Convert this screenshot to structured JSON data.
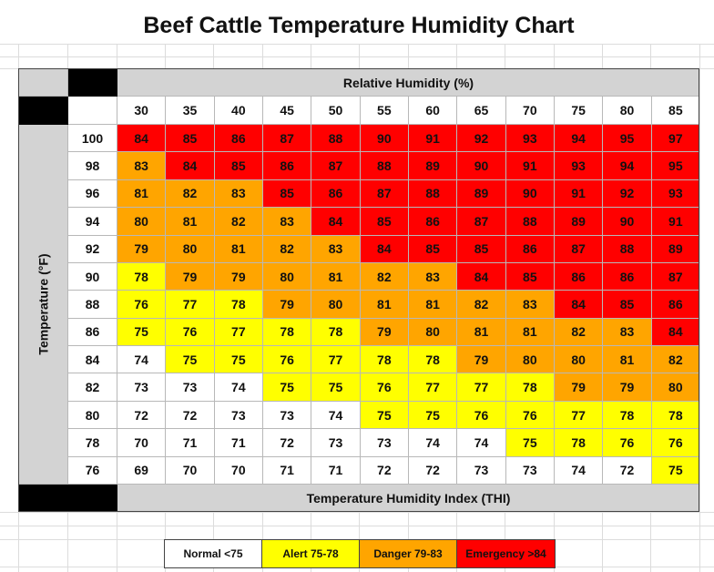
{
  "title": "Beef Cattle Temperature Humidity Chart",
  "colors": {
    "normal": "#ffffff",
    "alert": "#ffff00",
    "danger": "#ffa500",
    "emergency": "#ff0000",
    "header_bg": "#d3d3d3",
    "black": "#000000"
  },
  "chart_data": {
    "type": "heatmap",
    "title": "Beef Cattle Temperature Humidity Chart",
    "xlabel": "Relative Humidity (%)",
    "ylabel": "Temperature (°F)",
    "value_label": "Temperature Humidity Index (THI)",
    "x": [
      "30",
      "35",
      "40",
      "45",
      "50",
      "55",
      "60",
      "65",
      "70",
      "75",
      "80",
      "85"
    ],
    "y": [
      "100",
      "98",
      "96",
      "94",
      "92",
      "90",
      "88",
      "86",
      "84",
      "82",
      "80",
      "78",
      "76"
    ],
    "z": [
      [
        84,
        85,
        86,
        87,
        88,
        90,
        91,
        92,
        93,
        94,
        95,
        97
      ],
      [
        83,
        84,
        85,
        86,
        87,
        88,
        89,
        90,
        91,
        93,
        94,
        95
      ],
      [
        81,
        82,
        83,
        85,
        86,
        87,
        88,
        89,
        90,
        91,
        92,
        93
      ],
      [
        80,
        81,
        82,
        83,
        84,
        85,
        86,
        87,
        88,
        89,
        90,
        91
      ],
      [
        79,
        80,
        81,
        82,
        83,
        84,
        85,
        85,
        86,
        87,
        88,
        89
      ],
      [
        78,
        79,
        79,
        80,
        81,
        82,
        83,
        84,
        85,
        86,
        86,
        87
      ],
      [
        76,
        77,
        78,
        79,
        80,
        81,
        81,
        82,
        83,
        84,
        85,
        86
      ],
      [
        75,
        76,
        77,
        78,
        78,
        79,
        80,
        81,
        81,
        82,
        83,
        84
      ],
      [
        74,
        75,
        75,
        76,
        77,
        78,
        78,
        79,
        80,
        80,
        81,
        82
      ],
      [
        73,
        73,
        74,
        75,
        75,
        76,
        77,
        77,
        78,
        79,
        79,
        80
      ],
      [
        72,
        72,
        73,
        73,
        74,
        75,
        75,
        76,
        76,
        77,
        78,
        78
      ],
      [
        70,
        71,
        71,
        72,
        73,
        73,
        74,
        74,
        75,
        78,
        76,
        76
      ],
      [
        69,
        70,
        70,
        71,
        71,
        72,
        72,
        73,
        73,
        74,
        72,
        75
      ]
    ],
    "categories_color": [
      "NNNNNNNNNNNNN"
    ],
    "color_category": [
      [
        "E",
        "E",
        "E",
        "E",
        "E",
        "E",
        "E",
        "E",
        "E",
        "E",
        "E",
        "E"
      ],
      [
        "D",
        "E",
        "E",
        "E",
        "E",
        "E",
        "E",
        "E",
        "E",
        "E",
        "E",
        "E"
      ],
      [
        "D",
        "D",
        "D",
        "E",
        "E",
        "E",
        "E",
        "E",
        "E",
        "E",
        "E",
        "E"
      ],
      [
        "D",
        "D",
        "D",
        "D",
        "E",
        "E",
        "E",
        "E",
        "E",
        "E",
        "E",
        "E"
      ],
      [
        "D",
        "D",
        "D",
        "D",
        "D",
        "E",
        "E",
        "E",
        "E",
        "E",
        "E",
        "E"
      ],
      [
        "A",
        "D",
        "D",
        "D",
        "D",
        "D",
        "D",
        "E",
        "E",
        "E",
        "E",
        "E"
      ],
      [
        "A",
        "A",
        "A",
        "D",
        "D",
        "D",
        "D",
        "D",
        "D",
        "E",
        "E",
        "E"
      ],
      [
        "A",
        "A",
        "A",
        "A",
        "A",
        "D",
        "D",
        "D",
        "D",
        "D",
        "D",
        "E"
      ],
      [
        "N",
        "A",
        "A",
        "A",
        "A",
        "A",
        "A",
        "D",
        "D",
        "D",
        "D",
        "D"
      ],
      [
        "N",
        "N",
        "N",
        "A",
        "A",
        "A",
        "A",
        "A",
        "A",
        "D",
        "D",
        "D"
      ],
      [
        "N",
        "N",
        "N",
        "N",
        "N",
        "A",
        "A",
        "A",
        "A",
        "A",
        "A",
        "A"
      ],
      [
        "N",
        "N",
        "N",
        "N",
        "N",
        "N",
        "N",
        "N",
        "A",
        "A",
        "A",
        "A"
      ],
      [
        "N",
        "N",
        "N",
        "N",
        "N",
        "N",
        "N",
        "N",
        "N",
        "N",
        "N",
        "A"
      ]
    ],
    "legend": [
      {
        "label": "Normal <75",
        "category": "N"
      },
      {
        "label": "Alert 75-78",
        "category": "A"
      },
      {
        "label": "Danger 79-83",
        "category": "D"
      },
      {
        "label": "Emergency >84",
        "category": "E"
      }
    ]
  }
}
